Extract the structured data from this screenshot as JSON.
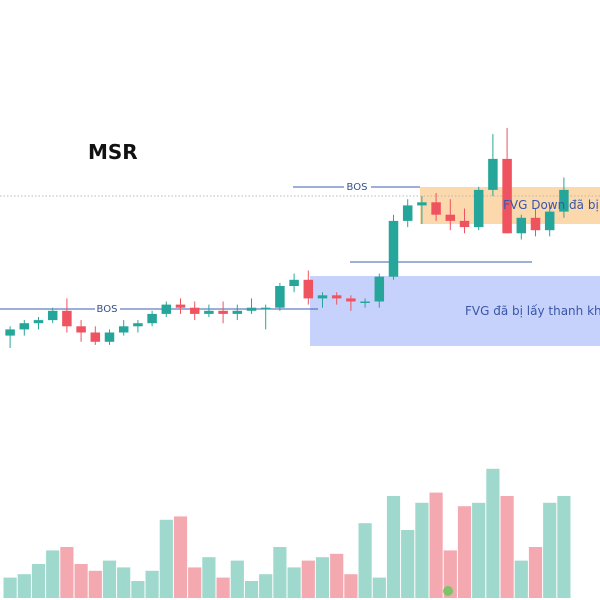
{
  "chart_data": {
    "type": "candlestick",
    "title": "MSR",
    "colors": {
      "up": "#26a69a",
      "down": "#ef5360",
      "volume_up": "#9fd8cd",
      "volume_down": "#f4a9b0",
      "bos_line": "#3b5db0",
      "fvg_down_fill": "#fbd7a8",
      "fvg_fill": "#c3d0fb",
      "dotted_level": "#b9b9b9"
    },
    "price_range": [
      0,
      100
    ],
    "volume_range": [
      0,
      100
    ],
    "candles": [
      {
        "o": 24,
        "h": 27,
        "l": 20,
        "c": 26
      },
      {
        "o": 26,
        "h": 29,
        "l": 24,
        "c": 28
      },
      {
        "o": 28,
        "h": 30,
        "l": 26,
        "c": 29
      },
      {
        "o": 29,
        "h": 33,
        "l": 28,
        "c": 32
      },
      {
        "o": 32,
        "h": 36,
        "l": 25,
        "c": 27
      },
      {
        "o": 27,
        "h": 29,
        "l": 22,
        "c": 25
      },
      {
        "o": 25,
        "h": 27,
        "l": 21,
        "c": 22
      },
      {
        "o": 22,
        "h": 26,
        "l": 21,
        "c": 25
      },
      {
        "o": 25,
        "h": 29,
        "l": 24,
        "c": 27
      },
      {
        "o": 27,
        "h": 29,
        "l": 25,
        "c": 28
      },
      {
        "o": 28,
        "h": 32,
        "l": 27,
        "c": 31
      },
      {
        "o": 31,
        "h": 35,
        "l": 30,
        "c": 34
      },
      {
        "o": 34,
        "h": 36,
        "l": 31,
        "c": 33
      },
      {
        "o": 33,
        "h": 35,
        "l": 29,
        "c": 31
      },
      {
        "o": 31,
        "h": 34,
        "l": 30,
        "c": 32
      },
      {
        "o": 32,
        "h": 35,
        "l": 28,
        "c": 31
      },
      {
        "o": 31,
        "h": 34,
        "l": 29,
        "c": 32
      },
      {
        "o": 32,
        "h": 36,
        "l": 31,
        "c": 33
      },
      {
        "o": 33,
        "h": 34,
        "l": 26,
        "c": 33
      },
      {
        "o": 33,
        "h": 41,
        "l": 32,
        "c": 40
      },
      {
        "o": 40,
        "h": 44,
        "l": 38,
        "c": 42
      },
      {
        "o": 42,
        "h": 45,
        "l": 34,
        "c": 36
      },
      {
        "o": 36,
        "h": 38,
        "l": 33,
        "c": 37
      },
      {
        "o": 37,
        "h": 38,
        "l": 34,
        "c": 36
      },
      {
        "o": 36,
        "h": 37,
        "l": 32,
        "c": 35
      },
      {
        "o": 35,
        "h": 36,
        "l": 33,
        "c": 35
      },
      {
        "o": 35,
        "h": 44,
        "l": 33,
        "c": 43
      },
      {
        "o": 43,
        "h": 63,
        "l": 42,
        "c": 61
      },
      {
        "o": 61,
        "h": 68,
        "l": 59,
        "c": 66
      },
      {
        "o": 66,
        "h": 69,
        "l": 60,
        "c": 67
      },
      {
        "o": 67,
        "h": 70,
        "l": 61,
        "c": 63
      },
      {
        "o": 63,
        "h": 68,
        "l": 58,
        "c": 61
      },
      {
        "o": 61,
        "h": 65,
        "l": 57,
        "c": 59
      },
      {
        "o": 59,
        "h": 72,
        "l": 58,
        "c": 71
      },
      {
        "o": 71,
        "h": 89,
        "l": 69,
        "c": 81
      },
      {
        "o": 81,
        "h": 91,
        "l": 57,
        "c": 57
      },
      {
        "o": 57,
        "h": 63,
        "l": 55,
        "c": 62
      },
      {
        "o": 62,
        "h": 65,
        "l": 56,
        "c": 58
      },
      {
        "o": 58,
        "h": 66,
        "l": 56,
        "c": 64
      },
      {
        "o": 64,
        "h": 75,
        "l": 62,
        "c": 71
      }
    ],
    "volumes": [
      12,
      14,
      20,
      28,
      30,
      20,
      16,
      22,
      18,
      10,
      16,
      46,
      48,
      18,
      24,
      12,
      22,
      10,
      14,
      30,
      18,
      22,
      24,
      26,
      14,
      44,
      12,
      60,
      40,
      56,
      62,
      28,
      54,
      56,
      76,
      60,
      22,
      30,
      56,
      60
    ],
    "annotations": {
      "bos_upper": "BOS",
      "bos_lower": "BOS",
      "fvg_down": "FVG Down đã bị lấy",
      "fvg": "FVG đã bị lấy thanh khoản"
    }
  }
}
